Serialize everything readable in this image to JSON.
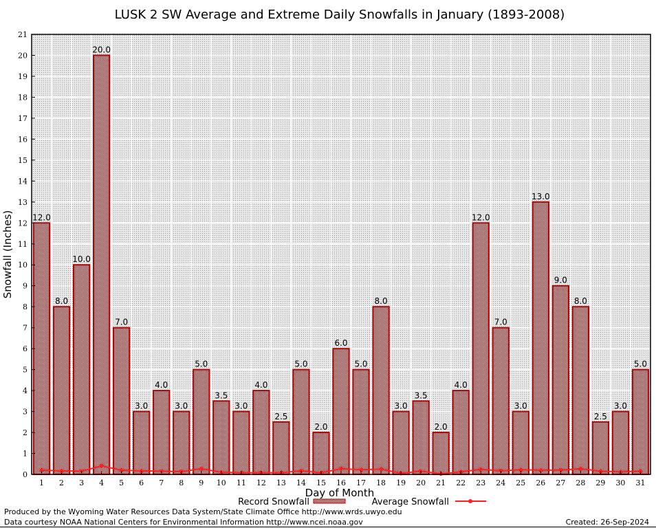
{
  "chart_data": {
    "type": "bar",
    "title": "LUSK 2 SW Average and Extreme Daily Snowfalls in January (1893-2008)",
    "xlabel": "Day of Month",
    "ylabel": "Snowfall (Inches)",
    "ylim": [
      0,
      21
    ],
    "yticks": [
      0,
      1,
      2,
      3,
      4,
      5,
      6,
      7,
      8,
      9,
      10,
      11,
      12,
      13,
      14,
      15,
      16,
      17,
      18,
      19,
      20,
      21
    ],
    "grid": true,
    "legend_position": "bottom",
    "categories": [
      "1",
      "2",
      "3",
      "4",
      "5",
      "6",
      "7",
      "8",
      "9",
      "10",
      "11",
      "12",
      "13",
      "14",
      "15",
      "16",
      "17",
      "18",
      "19",
      "20",
      "21",
      "22",
      "23",
      "24",
      "25",
      "26",
      "27",
      "28",
      "29",
      "30",
      "31"
    ],
    "series": [
      {
        "name": "Record Snowfall",
        "type": "bar",
        "color": "#b00000",
        "values": [
          12.0,
          8.0,
          10.0,
          20.0,
          7.0,
          3.0,
          4.0,
          3.0,
          5.0,
          3.5,
          3.0,
          4.0,
          2.5,
          5.0,
          2.0,
          6.0,
          5.0,
          8.0,
          3.0,
          3.5,
          2.0,
          4.0,
          12.0,
          7.0,
          3.0,
          13.0,
          9.0,
          8.0,
          2.5,
          3.0,
          5.0
        ],
        "labels": [
          "12.0",
          "8.0",
          "10.0",
          "20.0",
          "7.0",
          "3.0",
          "4.0",
          "3.0",
          "5.0",
          "3.5",
          "3.0",
          "4.0",
          "2.5",
          "5.0",
          "2.0",
          "6.0",
          "5.0",
          "8.0",
          "3.0",
          "3.5",
          "2.0",
          "4.0",
          "12.0",
          "7.0",
          "3.0",
          "13.0",
          "9.0",
          "8.0",
          "2.5",
          "3.0",
          "5.0"
        ]
      },
      {
        "name": "Average Snowfall",
        "type": "line",
        "color": "#ff2020",
        "values": [
          0.2,
          0.17,
          0.15,
          0.4,
          0.2,
          0.17,
          0.15,
          0.13,
          0.27,
          0.1,
          0.08,
          0.08,
          0.08,
          0.17,
          0.08,
          0.27,
          0.22,
          0.25,
          0.05,
          0.15,
          0.03,
          0.12,
          0.24,
          0.17,
          0.22,
          0.2,
          0.2,
          0.27,
          0.15,
          0.12,
          0.15
        ]
      }
    ]
  },
  "footer": {
    "produced_by": "Produced by the Wyoming Water Resources Data System/State Climate Office http://www.wrds.uwyo.edu",
    "courtesy": "Data courtesy NOAA National Centers for Environmental Information http://www.ncei.noaa.gov",
    "created": "Created:  26-Sep-2024"
  }
}
